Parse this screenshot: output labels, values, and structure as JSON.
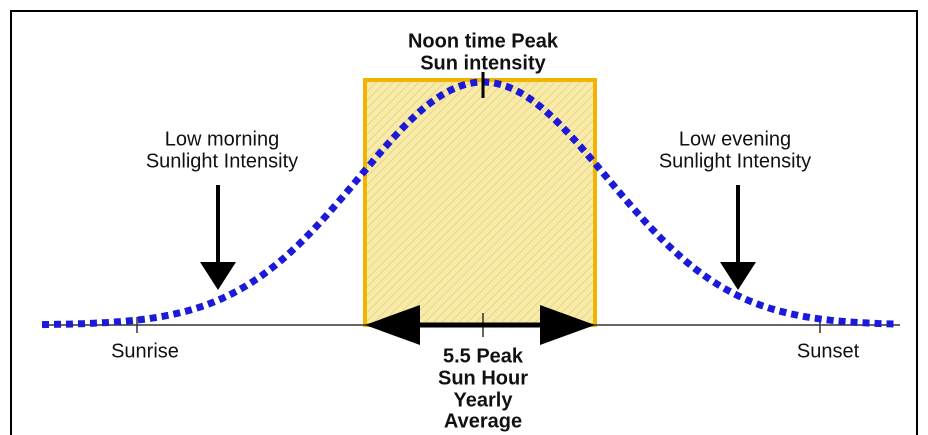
{
  "peak_label": [
    "Noon time Peak",
    "Sun intensity"
  ],
  "morning_label": [
    "Low morning",
    "Sunlight Intensity"
  ],
  "evening_label": [
    "Low evening",
    "Sunlight Intensity"
  ],
  "sunrise_label": "Sunrise",
  "sunset_label": "Sunset",
  "peak_hours_label": [
    "5.5 Peak",
    "Sun Hour",
    "Yearly",
    "Average"
  ]
}
